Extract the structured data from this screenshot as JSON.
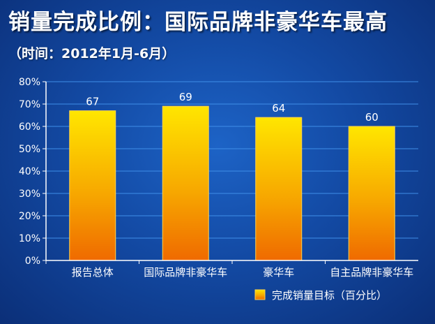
{
  "title": "销量完成比例：国际品牌非豪华车最高",
  "subtitle": "（时间：2012年1月-6月）",
  "chart_data": {
    "type": "bar",
    "categories": [
      "报告总体",
      "国际品牌非豪华车",
      "豪华车",
      "自主品牌非豪华车"
    ],
    "series": [
      {
        "name": "完成销量目标（百分比）",
        "values": [
          67,
          69,
          64,
          60
        ]
      }
    ],
    "data_labels": [
      "67",
      "69",
      "64",
      "60"
    ],
    "yticks": [
      "0%",
      "10%",
      "20%",
      "30%",
      "40%",
      "50%",
      "60%",
      "70%",
      "80%"
    ],
    "ylim": [
      0,
      80
    ],
    "grid": true,
    "legend": "bottom-right",
    "colors": {
      "bar_top": "#ffe600",
      "bar_bottom": "#ef6a00",
      "grid": "#3f8ee8",
      "axis": "#ffffff"
    }
  }
}
